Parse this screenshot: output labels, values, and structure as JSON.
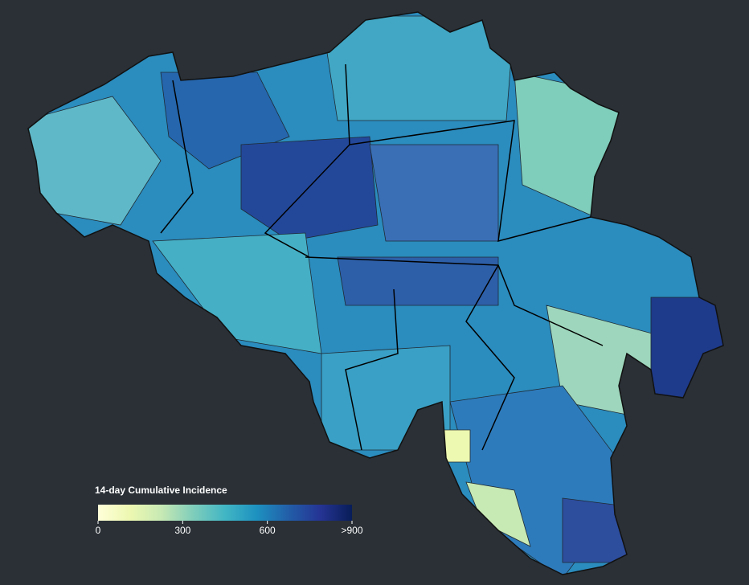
{
  "legend": {
    "title": "14-day Cumulative Incidence",
    "range": [
      0,
      900
    ],
    "ticks": [
      0,
      300,
      600,
      {
        "value": 900,
        "label": ">900"
      }
    ],
    "colors": [
      "#ffffd9",
      "#edf8b1",
      "#c7e9b4",
      "#7fcdbb",
      "#41b6c4",
      "#1d91c0",
      "#225ea8",
      "#253494",
      "#081d58"
    ]
  }
}
